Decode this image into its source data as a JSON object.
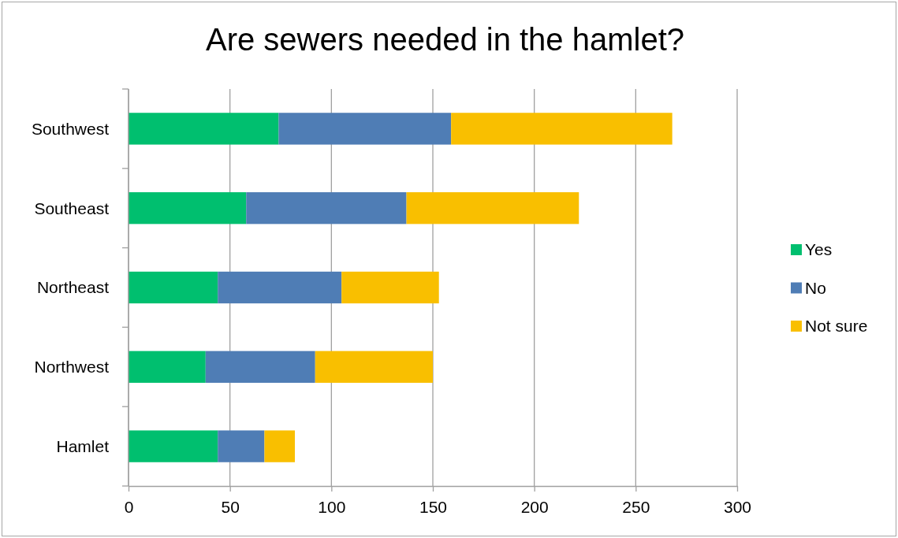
{
  "chart_data": {
    "type": "bar",
    "orientation": "horizontal",
    "stacked": true,
    "title": "Are sewers needed in the hamlet?",
    "categories": [
      "Southwest",
      "Southeast",
      "Northeast",
      "Northwest",
      "Hamlet"
    ],
    "series": [
      {
        "name": "Yes",
        "color": "#00bf6f",
        "values": [
          74,
          58,
          44,
          38,
          44
        ]
      },
      {
        "name": "No",
        "color": "#4f7db5",
        "values": [
          85,
          79,
          61,
          54,
          23
        ]
      },
      {
        "name": "Not sure",
        "color": "#f9bf00",
        "values": [
          109,
          85,
          48,
          58,
          15
        ]
      }
    ],
    "xlim": [
      0,
      300
    ],
    "xticks": [
      0,
      50,
      100,
      150,
      200,
      250,
      300
    ],
    "grid": "x",
    "legend": "right"
  }
}
